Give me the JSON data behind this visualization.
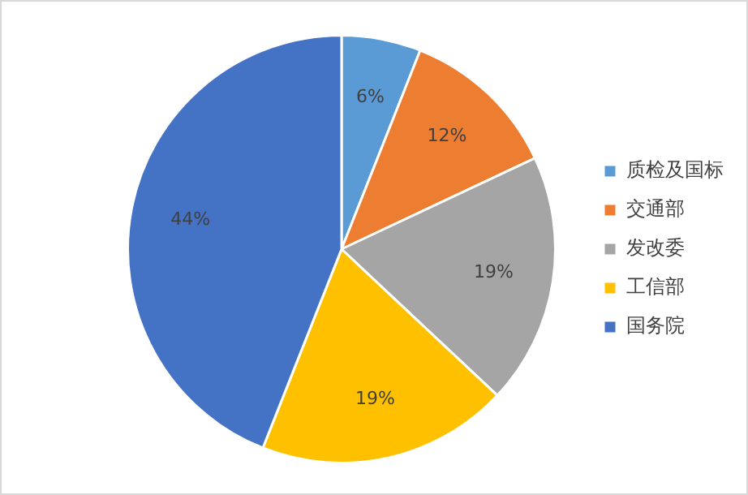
{
  "chart_data": {
    "type": "pie",
    "categories": [
      "质检及国标",
      "交通部",
      "发改委",
      "工信部",
      "国务院"
    ],
    "values": [
      6,
      12,
      19,
      19,
      44
    ],
    "colors": [
      "#5b9bd5",
      "#ed7d31",
      "#a5a5a5",
      "#ffc000",
      "#4472c4"
    ],
    "value_labels": [
      "6%",
      "12%",
      "19%",
      "19%",
      "44%"
    ],
    "legend": "right"
  }
}
